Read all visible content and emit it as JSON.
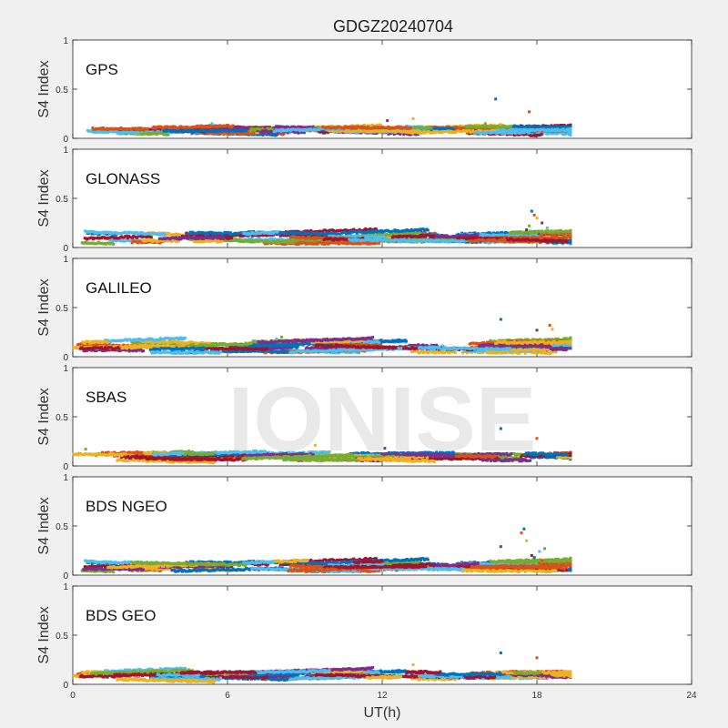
{
  "figure": {
    "title": "GDGZ20240704",
    "watermark": "IONISE",
    "xlabel": "UT(h)",
    "ylabel": "S4 Index"
  },
  "colors": {
    "figure_bg": "#f0f0f0",
    "axes_bg": "#ffffff",
    "watermark": "#e6e6e6",
    "series_palette": [
      "#0072BD",
      "#D95319",
      "#EDB120",
      "#7E2F8E",
      "#77AC30",
      "#4DBEEE",
      "#A2142F"
    ]
  },
  "chart_data": [
    {
      "type": "scatter",
      "label": "GPS",
      "xlim": [
        0,
        24
      ],
      "ylim": [
        0,
        1
      ],
      "yticks": [
        "0",
        "0.5",
        "1"
      ],
      "xticks": [
        "0",
        "6",
        "12",
        "18",
        "24"
      ],
      "data_range_x": [
        0,
        19.3
      ],
      "baseline": [
        0.05,
        0.12
      ],
      "spikes": [
        {
          "x": 16.4,
          "y": 0.4
        },
        {
          "x": 17.7,
          "y": 0.27
        },
        {
          "x": 13.2,
          "y": 0.2
        },
        {
          "x": 12.2,
          "y": 0.18
        },
        {
          "x": 16.0,
          "y": 0.15
        },
        {
          "x": 5.4,
          "y": 0.15
        }
      ]
    },
    {
      "type": "scatter",
      "label": "GLONASS",
      "xlim": [
        0,
        24
      ],
      "ylim": [
        0,
        1
      ],
      "yticks": [
        "0",
        "0.5",
        "1"
      ],
      "xticks": [
        "0",
        "6",
        "12",
        "18",
        "24"
      ],
      "data_range_x": [
        0,
        19.3
      ],
      "baseline": [
        0.04,
        0.16
      ],
      "spikes": [
        {
          "x": 17.8,
          "y": 0.37
        },
        {
          "x": 17.9,
          "y": 0.33
        },
        {
          "x": 18.0,
          "y": 0.3
        },
        {
          "x": 18.2,
          "y": 0.25
        },
        {
          "x": 17.7,
          "y": 0.22
        },
        {
          "x": 18.4,
          "y": 0.2
        },
        {
          "x": 17.6,
          "y": 0.18
        }
      ]
    },
    {
      "type": "scatter",
      "label": "GALILEO",
      "xlim": [
        0,
        24
      ],
      "ylim": [
        0,
        1
      ],
      "yticks": [
        "0",
        "0.5",
        "1"
      ],
      "xticks": [
        "0",
        "6",
        "12",
        "18",
        "24"
      ],
      "data_range_x": [
        0,
        19.3
      ],
      "baseline": [
        0.04,
        0.16
      ],
      "spikes": [
        {
          "x": 16.6,
          "y": 0.38
        },
        {
          "x": 18.5,
          "y": 0.32
        },
        {
          "x": 18.6,
          "y": 0.28
        },
        {
          "x": 18.0,
          "y": 0.27
        },
        {
          "x": 8.1,
          "y": 0.2
        },
        {
          "x": 7.9,
          "y": 0.18
        }
      ]
    },
    {
      "type": "scatter",
      "label": "SBAS",
      "xlim": [
        0,
        24
      ],
      "ylim": [
        0,
        1
      ],
      "yticks": [
        "0",
        "0.5",
        "1"
      ],
      "xticks": [
        "0",
        "6",
        "12",
        "18",
        "24"
      ],
      "data_range_x": [
        0,
        19.3
      ],
      "baseline": [
        0.06,
        0.13
      ],
      "spikes": [
        {
          "x": 16.6,
          "y": 0.38
        },
        {
          "x": 18.0,
          "y": 0.28
        },
        {
          "x": 9.4,
          "y": 0.21
        },
        {
          "x": 12.1,
          "y": 0.18
        },
        {
          "x": 0.5,
          "y": 0.17
        }
      ]
    },
    {
      "type": "scatter",
      "label": "BDS NGEO",
      "xlim": [
        0,
        24
      ],
      "ylim": [
        0,
        1
      ],
      "yticks": [
        "0",
        "0.5",
        "1"
      ],
      "xticks": [
        "0",
        "6",
        "12",
        "18",
        "24"
      ],
      "data_range_x": [
        0,
        19.3
      ],
      "baseline": [
        0.04,
        0.14
      ],
      "spikes": [
        {
          "x": 17.5,
          "y": 0.47
        },
        {
          "x": 17.4,
          "y": 0.43
        },
        {
          "x": 17.6,
          "y": 0.35
        },
        {
          "x": 16.6,
          "y": 0.29
        },
        {
          "x": 18.3,
          "y": 0.27
        },
        {
          "x": 18.1,
          "y": 0.24
        },
        {
          "x": 17.8,
          "y": 0.2
        },
        {
          "x": 17.9,
          "y": 0.18
        },
        {
          "x": 18.2,
          "y": 0.15
        }
      ]
    },
    {
      "type": "scatter",
      "label": "BDS GEO",
      "xlim": [
        0,
        24
      ],
      "ylim": [
        0,
        1
      ],
      "yticks": [
        "0",
        "0.5",
        "1"
      ],
      "xticks": [
        "0",
        "6",
        "12",
        "18",
        "24"
      ],
      "data_range_x": [
        0,
        19.3
      ],
      "baseline": [
        0.05,
        0.13
      ],
      "spikes": [
        {
          "x": 16.6,
          "y": 0.32
        },
        {
          "x": 18.0,
          "y": 0.27
        },
        {
          "x": 13.2,
          "y": 0.2
        }
      ]
    }
  ]
}
